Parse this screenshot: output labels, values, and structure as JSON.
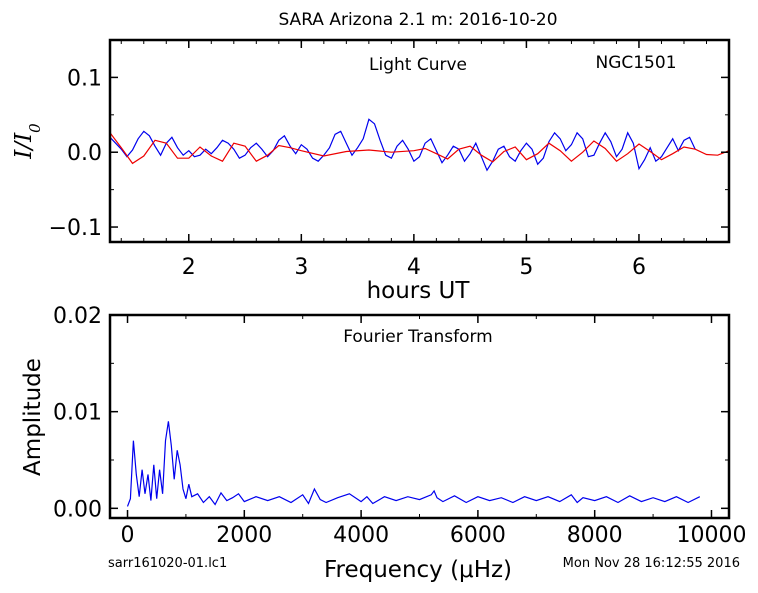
{
  "figure": {
    "title": "SARA Arizona 2.1 m:  2016-10-20",
    "footer_left": "sarr161020-01.lc1",
    "footer_right": "Mon Nov 28 16:12:55 2016"
  },
  "chart_data": [
    {
      "type": "line",
      "inset_left": "Light Curve",
      "inset_right": "NGC1501",
      "xlabel": "hours UT",
      "ylabel": "I/I0",
      "xlim": [
        1.3,
        6.8
      ],
      "ylim": [
        -0.12,
        0.15
      ],
      "xticks": [
        2,
        3,
        4,
        5,
        6
      ],
      "xtick_labels": [
        "2",
        "3",
        "4",
        "5",
        "6"
      ],
      "yticks": [
        -0.1,
        0.0,
        0.1
      ],
      "ytick_labels": [
        "−0.1",
        "0.0",
        "0.1"
      ],
      "grid": false,
      "series": [
        {
          "color": "#0000ee",
          "x": [
            1.3,
            1.35,
            1.4,
            1.45,
            1.5,
            1.55,
            1.6,
            1.65,
            1.7,
            1.75,
            1.8,
            1.85,
            1.9,
            1.95,
            2.0,
            2.05,
            2.1,
            2.15,
            2.2,
            2.25,
            2.3,
            2.35,
            2.4,
            2.45,
            2.5,
            2.55,
            2.6,
            2.65,
            2.7,
            2.75,
            2.8,
            2.85,
            2.9,
            2.95,
            3.0,
            3.05,
            3.1,
            3.15,
            3.2,
            3.25,
            3.3,
            3.35,
            3.4,
            3.45,
            3.5,
            3.55,
            3.6,
            3.65,
            3.7,
            3.75,
            3.8,
            3.85,
            3.9,
            3.95,
            4.0,
            4.05,
            4.1,
            4.15,
            4.2,
            4.25,
            4.3,
            4.35,
            4.4,
            4.45,
            4.5,
            4.55,
            4.6,
            4.65,
            4.7,
            4.75,
            4.8,
            4.85,
            4.9,
            4.95,
            5.0,
            5.05,
            5.1,
            5.15,
            5.2,
            5.25,
            5.3,
            5.35,
            5.4,
            5.45,
            5.5,
            5.55,
            5.6,
            5.65,
            5.7,
            5.75,
            5.8,
            5.85,
            5.9,
            5.95,
            6.0,
            6.05,
            6.1,
            6.15,
            6.2,
            6.25,
            6.3,
            6.35,
            6.4,
            6.45,
            6.5
          ],
          "y": [
            0.02,
            0.012,
            0.004,
            -0.006,
            0.003,
            0.018,
            0.028,
            0.022,
            0.008,
            -0.004,
            0.012,
            0.02,
            0.006,
            -0.004,
            0.002,
            -0.006,
            -0.004,
            0.004,
            -0.002,
            0.006,
            0.016,
            0.012,
            0.004,
            -0.008,
            -0.004,
            0.006,
            0.012,
            0.004,
            -0.006,
            0.002,
            0.016,
            0.022,
            0.008,
            -0.002,
            0.01,
            0.004,
            -0.008,
            -0.012,
            -0.004,
            0.006,
            0.024,
            0.028,
            0.012,
            -0.004,
            0.006,
            0.018,
            0.044,
            0.038,
            0.016,
            -0.004,
            -0.008,
            0.008,
            0.016,
            0.004,
            -0.012,
            -0.006,
            0.012,
            0.018,
            0.002,
            -0.014,
            -0.004,
            0.008,
            0.004,
            -0.012,
            -0.002,
            0.012,
            -0.006,
            -0.024,
            -0.012,
            0.004,
            0.008,
            -0.006,
            -0.012,
            0.002,
            0.012,
            0.004,
            -0.016,
            -0.008,
            0.014,
            0.026,
            0.018,
            0.002,
            0.01,
            0.026,
            0.018,
            -0.006,
            -0.004,
            0.012,
            0.026,
            0.014,
            -0.006,
            0.004,
            0.026,
            0.012,
            -0.022,
            -0.01,
            0.006,
            -0.012,
            -0.006,
            0.006,
            0.018,
            0.002,
            0.016,
            0.02,
            0.004
          ]
        },
        {
          "color": "#ee0000",
          "x": [
            1.3,
            1.4,
            1.5,
            1.6,
            1.7,
            1.8,
            1.9,
            2.0,
            2.1,
            2.2,
            2.3,
            2.4,
            2.5,
            2.6,
            2.7,
            2.8,
            2.9,
            3.0,
            3.2,
            3.4,
            3.6,
            3.8,
            4.0,
            4.1,
            4.2,
            4.3,
            4.4,
            4.5,
            4.6,
            4.7,
            4.8,
            4.9,
            5.0,
            5.1,
            5.2,
            5.3,
            5.4,
            5.5,
            5.6,
            5.7,
            5.8,
            5.9,
            6.0,
            6.1,
            6.2,
            6.3,
            6.4,
            6.5,
            6.6,
            6.7,
            6.8
          ],
          "y": [
            0.026,
            0.006,
            -0.015,
            -0.005,
            0.016,
            0.012,
            -0.008,
            -0.008,
            0.007,
            -0.005,
            -0.012,
            0.012,
            0.008,
            -0.012,
            -0.004,
            0.009,
            0.006,
            0.002,
            -0.005,
            0.001,
            0.003,
            0.0,
            0.002,
            0.005,
            -0.002,
            -0.009,
            0.004,
            0.008,
            -0.004,
            -0.013,
            0.001,
            0.007,
            -0.01,
            -0.002,
            0.012,
            0.002,
            -0.012,
            0.0,
            0.015,
            0.005,
            -0.012,
            -0.002,
            0.011,
            0.001,
            -0.01,
            -0.002,
            0.007,
            0.004,
            -0.003,
            -0.004,
            0.002
          ]
        }
      ]
    },
    {
      "type": "line",
      "inset_left": "Fourier Transform",
      "xlabel": "Frequency (μHz)",
      "ylabel": "Amplitude",
      "xlim": [
        -300,
        10300
      ],
      "ylim": [
        -0.001,
        0.02
      ],
      "xticks": [
        0,
        2000,
        4000,
        6000,
        8000,
        10000
      ],
      "xtick_labels": [
        "0",
        "2000",
        "4000",
        "6000",
        "8000",
        "10000"
      ],
      "yticks": [
        0.0,
        0.01,
        0.02
      ],
      "ytick_labels": [
        "0.00",
        "0.01",
        "0.02"
      ],
      "grid": false,
      "series": [
        {
          "color": "#0000ee",
          "x": [
            0,
            50,
            100,
            150,
            200,
            250,
            300,
            350,
            400,
            450,
            500,
            550,
            600,
            650,
            700,
            750,
            800,
            850,
            900,
            950,
            1000,
            1050,
            1100,
            1200,
            1300,
            1400,
            1500,
            1600,
            1700,
            1800,
            1900,
            2000,
            2200,
            2400,
            2600,
            2800,
            3000,
            3100,
            3200,
            3300,
            3400,
            3600,
            3800,
            4000,
            4100,
            4200,
            4400,
            4600,
            4800,
            5000,
            5200,
            5250,
            5300,
            5400,
            5600,
            5800,
            6000,
            6200,
            6400,
            6600,
            6800,
            7000,
            7200,
            7400,
            7600,
            7700,
            7800,
            8000,
            8200,
            8400,
            8600,
            8800,
            9000,
            9200,
            9400,
            9600,
            9800
          ],
          "y": [
            0.0002,
            0.001,
            0.007,
            0.0035,
            0.0012,
            0.004,
            0.0015,
            0.0035,
            0.0008,
            0.0045,
            0.001,
            0.004,
            0.0015,
            0.007,
            0.009,
            0.0065,
            0.003,
            0.006,
            0.0045,
            0.002,
            0.001,
            0.0025,
            0.0012,
            0.0015,
            0.0006,
            0.0012,
            0.0004,
            0.0016,
            0.0008,
            0.0011,
            0.0015,
            0.0007,
            0.0012,
            0.0008,
            0.0012,
            0.0006,
            0.0014,
            0.0005,
            0.002,
            0.0009,
            0.0006,
            0.0011,
            0.0015,
            0.0007,
            0.0012,
            0.0005,
            0.0012,
            0.0008,
            0.0012,
            0.0009,
            0.0014,
            0.0018,
            0.0011,
            0.0007,
            0.0013,
            0.0006,
            0.0012,
            0.0008,
            0.0011,
            0.0006,
            0.0012,
            0.0008,
            0.0012,
            0.0007,
            0.0014,
            0.0006,
            0.0011,
            0.0008,
            0.0012,
            0.0006,
            0.0013,
            0.0007,
            0.0011,
            0.0007,
            0.0012,
            0.0006,
            0.0012
          ]
        }
      ]
    }
  ]
}
